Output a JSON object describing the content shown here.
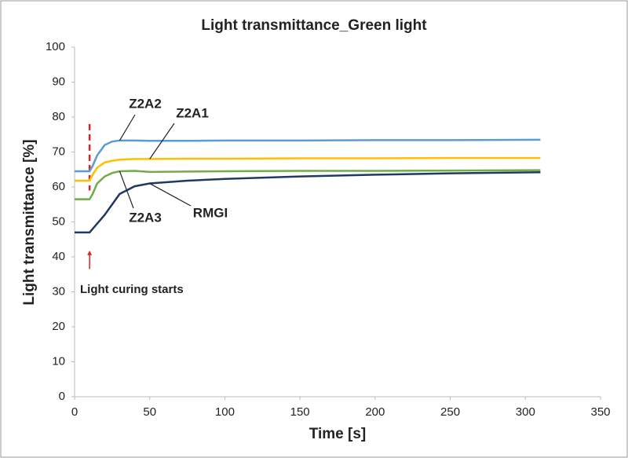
{
  "chart_data": {
    "type": "line",
    "title": "Light transmittance_Green light",
    "x_label": "Time [s]",
    "y_label": "Light transmittance [%]",
    "x": [
      0,
      10,
      12,
      15,
      20,
      25,
      30,
      40,
      50,
      75,
      100,
      150,
      200,
      250,
      310
    ],
    "series": [
      {
        "name": "Z2A2",
        "color": "#5b9bd5",
        "values": [
          64.5,
          64.5,
          66,
          69,
          72,
          73,
          73.3,
          73.3,
          73.2,
          73.2,
          73.3,
          73.3,
          73.4,
          73.4,
          73.5
        ]
      },
      {
        "name": "Z2A1",
        "color": "#ffc000",
        "values": [
          61.8,
          61.8,
          63.5,
          65.5,
          67,
          67.5,
          67.8,
          68,
          68,
          68.1,
          68.1,
          68.2,
          68.2,
          68.3,
          68.3
        ]
      },
      {
        "name": "Z2A3",
        "color": "#70ad47",
        "values": [
          56.5,
          56.5,
          58,
          61,
          63,
          64,
          64.5,
          64.6,
          64.3,
          64.4,
          64.5,
          64.6,
          64.6,
          64.7,
          64.8
        ]
      },
      {
        "name": "RMGI",
        "color": "#203864",
        "values": [
          47,
          47,
          48,
          49.5,
          52,
          55,
          58,
          60.2,
          61,
          61.8,
          62.3,
          63,
          63.5,
          63.9,
          64.2
        ]
      }
    ],
    "annotation": {
      "text": "Light curing starts",
      "x": 10,
      "color": "#e02020"
    },
    "xlim": [
      0,
      350
    ],
    "xticks": [
      0,
      50,
      100,
      150,
      200,
      250,
      300,
      350
    ],
    "ylim": [
      0,
      100
    ],
    "yticks": [
      0,
      10,
      20,
      30,
      40,
      50,
      60,
      70,
      80,
      90,
      100
    ],
    "grid": false
  }
}
